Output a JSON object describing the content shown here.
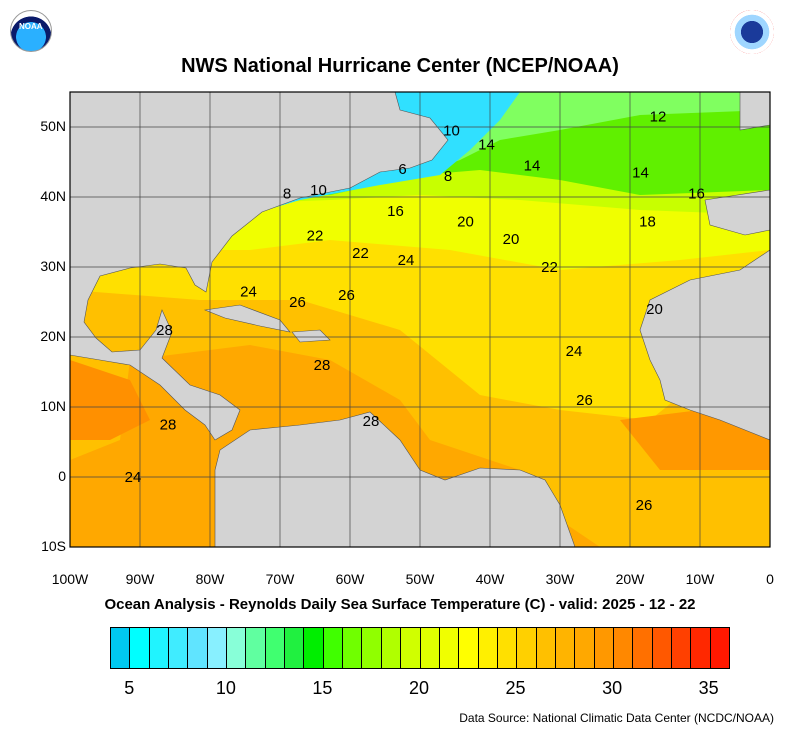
{
  "header": {
    "title": "NWS National Hurricane Center (NCEP/NOAA)",
    "left_logo": "NOAA",
    "right_logo": "NATIONAL WEATHER SERVICE"
  },
  "map": {
    "lon_ticks": [
      "100W",
      "90W",
      "80W",
      "70W",
      "60W",
      "50W",
      "40W",
      "30W",
      "20W",
      "10W",
      "0"
    ],
    "lat_ticks": [
      "50N",
      "40N",
      "30N",
      "20N",
      "10N",
      "0",
      "10S"
    ],
    "land_color": "#d3d3d3",
    "contour_labels": [
      {
        "text": "12",
        "lon": -16,
        "lat": 51.5
      },
      {
        "text": "10",
        "lon": -45.5,
        "lat": 49.5
      },
      {
        "text": "14",
        "lon": -40.5,
        "lat": 47.5
      },
      {
        "text": "14",
        "lon": -34,
        "lat": 44.5
      },
      {
        "text": "14",
        "lon": -18.5,
        "lat": 43.5
      },
      {
        "text": "6",
        "lon": -52.5,
        "lat": 44
      },
      {
        "text": "8",
        "lon": -46,
        "lat": 43
      },
      {
        "text": "8",
        "lon": -69,
        "lat": 40.5
      },
      {
        "text": "10",
        "lon": -64.5,
        "lat": 41
      },
      {
        "text": "16",
        "lon": -10.5,
        "lat": 40.5
      },
      {
        "text": "16",
        "lon": -53.5,
        "lat": 38
      },
      {
        "text": "18",
        "lon": -17.5,
        "lat": 36.5
      },
      {
        "text": "20",
        "lon": -43.5,
        "lat": 36.5
      },
      {
        "text": "22",
        "lon": -65,
        "lat": 34.5
      },
      {
        "text": "20",
        "lon": -37,
        "lat": 34
      },
      {
        "text": "22",
        "lon": -58.5,
        "lat": 32
      },
      {
        "text": "24",
        "lon": -52,
        "lat": 31
      },
      {
        "text": "22",
        "lon": -31.5,
        "lat": 30
      },
      {
        "text": "24",
        "lon": -74.5,
        "lat": 26.5
      },
      {
        "text": "26",
        "lon": -67.5,
        "lat": 25
      },
      {
        "text": "26",
        "lon": -60.5,
        "lat": 26
      },
      {
        "text": "20",
        "lon": -16.5,
        "lat": 24
      },
      {
        "text": "28",
        "lon": -86.5,
        "lat": 21
      },
      {
        "text": "24",
        "lon": -28,
        "lat": 18
      },
      {
        "text": "28",
        "lon": -64,
        "lat": 16
      },
      {
        "text": "26",
        "lon": -26.5,
        "lat": 11
      },
      {
        "text": "28",
        "lon": -57,
        "lat": 8
      },
      {
        "text": "28",
        "lon": -86,
        "lat": 7.5
      },
      {
        "text": "24",
        "lon": -91,
        "lat": 0
      },
      {
        "text": "26",
        "lon": -18,
        "lat": -4
      }
    ]
  },
  "subtitle": "Ocean Analysis - Reynolds Daily Sea Surface Temperature (C) - valid: 2025 - 12 - 22",
  "colorbar": {
    "unit": "C",
    "bins_min": 4,
    "bins_max": 36,
    "labels": [
      "5",
      "10",
      "15",
      "20",
      "25",
      "30",
      "35"
    ],
    "colors": [
      "#00c8f0",
      "#00ffff",
      "#20f4ff",
      "#40ecff",
      "#60e4ff",
      "#88f0ff",
      "#88ffd8",
      "#60ffa0",
      "#40ff70",
      "#20f040",
      "#00ee00",
      "#40ff00",
      "#70ff00",
      "#90ff00",
      "#b0ff00",
      "#d0ff00",
      "#e0ff00",
      "#f0ff00",
      "#ffff00",
      "#fff000",
      "#ffe000",
      "#ffd000",
      "#ffc000",
      "#ffb400",
      "#ffa800",
      "#ff9800",
      "#ff8800",
      "#ff7000",
      "#ff5800",
      "#ff4000",
      "#ff2800",
      "#ff1800"
    ]
  },
  "source": "Data Source: National Climatic Data Center (NCDC/NOAA)"
}
